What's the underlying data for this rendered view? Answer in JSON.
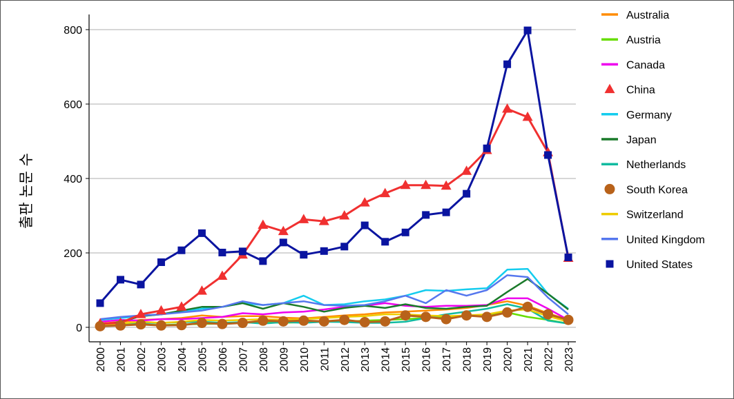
{
  "chart_data": {
    "type": "line",
    "title": "",
    "xlabel": "",
    "ylabel": "출판 논문 수",
    "ylim": [
      0,
      800
    ],
    "yticks": [
      0,
      200,
      400,
      600,
      800
    ],
    "grid": "horizontal",
    "legend_position": "right",
    "x": [
      "2000",
      "2001",
      "2002",
      "2003",
      "2004",
      "2005",
      "2006",
      "2007",
      "2008",
      "2009",
      "2010",
      "2011",
      "2012",
      "2013",
      "2014",
      "2015",
      "2016",
      "2017",
      "2018",
      "2019",
      "2020",
      "2021",
      "2022",
      "2023"
    ],
    "series": [
      {
        "name": "Australia",
        "color": "#ff8c00",
        "marker": "none",
        "values": [
          10,
          15,
          20,
          22,
          25,
          32,
          28,
          30,
          30,
          26,
          24,
          28,
          32,
          35,
          40,
          42,
          45,
          48,
          52,
          60,
          70,
          58,
          38,
          20
        ]
      },
      {
        "name": "Austria",
        "color": "#66dd00",
        "marker": "none",
        "values": [
          3,
          5,
          8,
          6,
          8,
          9,
          10,
          12,
          14,
          12,
          14,
          16,
          15,
          18,
          20,
          22,
          25,
          28,
          30,
          35,
          40,
          28,
          20,
          10
        ]
      },
      {
        "name": "Canada",
        "color": "#ee00ee",
        "marker": "none",
        "values": [
          15,
          20,
          18,
          22,
          22,
          25,
          28,
          38,
          35,
          40,
          42,
          48,
          55,
          58,
          65,
          58,
          55,
          58,
          58,
          60,
          78,
          78,
          50,
          20
        ]
      },
      {
        "name": "China",
        "color": "#f03030",
        "marker": "triangle",
        "values": [
          10,
          12,
          35,
          45,
          55,
          98,
          138,
          195,
          275,
          258,
          290,
          285,
          300,
          335,
          360,
          382,
          382,
          380,
          420,
          476,
          587,
          565,
          470,
          186
        ]
      },
      {
        "name": "Germany",
        "color": "#14ccee",
        "marker": "none",
        "values": [
          20,
          25,
          30,
          35,
          42,
          50,
          55,
          65,
          60,
          65,
          85,
          60,
          62,
          70,
          75,
          85,
          100,
          98,
          102,
          105,
          155,
          157,
          90,
          50
        ]
      },
      {
        "name": "Japan",
        "color": "#1a7a2a",
        "marker": "none",
        "values": [
          5,
          15,
          30,
          35,
          45,
          55,
          55,
          65,
          50,
          65,
          55,
          42,
          52,
          58,
          52,
          62,
          52,
          50,
          55,
          58,
          95,
          130,
          90,
          48
        ]
      },
      {
        "name": "Netherlands",
        "color": "#11bba0",
        "marker": "none",
        "values": [
          8,
          10,
          12,
          12,
          14,
          15,
          12,
          14,
          10,
          14,
          12,
          15,
          14,
          12,
          12,
          15,
          25,
          35,
          42,
          50,
          62,
          50,
          18,
          10
        ]
      },
      {
        "name": "South Korea",
        "color": "#b8621a",
        "marker": "circle",
        "values": [
          3,
          5,
          8,
          5,
          6,
          12,
          9,
          12,
          18,
          16,
          18,
          16,
          20,
          14,
          16,
          32,
          28,
          22,
          32,
          28,
          40,
          55,
          35,
          20
        ]
      },
      {
        "name": "Switzerland",
        "color": "#eecc00",
        "marker": "none",
        "values": [
          5,
          10,
          15,
          12,
          15,
          20,
          18,
          20,
          22,
          20,
          22,
          25,
          28,
          30,
          35,
          35,
          32,
          30,
          32,
          35,
          45,
          48,
          30,
          15
        ]
      },
      {
        "name": "United Kingdom",
        "color": "#5577ee",
        "marker": "none",
        "values": [
          22,
          28,
          32,
          35,
          40,
          45,
          55,
          70,
          60,
          65,
          70,
          60,
          58,
          60,
          70,
          85,
          65,
          100,
          85,
          100,
          140,
          135,
          80,
          35
        ]
      },
      {
        "name": "United States",
        "color": "#0a14a0",
        "marker": "square",
        "values": [
          65,
          128,
          115,
          175,
          207,
          253,
          201,
          204,
          178,
          228,
          195,
          205,
          217,
          274,
          230,
          255,
          302,
          309,
          359,
          481,
          707,
          798,
          463,
          188
        ]
      }
    ]
  }
}
